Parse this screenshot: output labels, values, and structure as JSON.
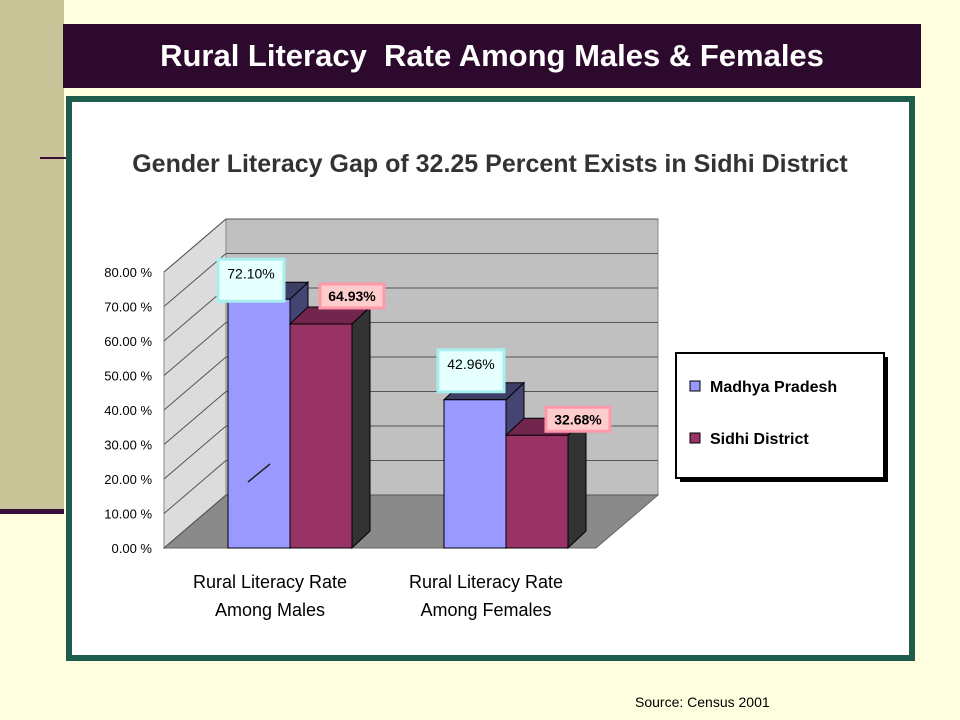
{
  "slide": {
    "title": "Rural Literacy  Rate Among Males & Females",
    "source": "Source: Census 2001"
  },
  "colors": {
    "title_bar": "#2D0A2D",
    "background": "#FFFFE0",
    "left_band": "#C9C497",
    "frame": "#1E5D4E",
    "series_mp": "#9999FF",
    "series_sidhi": "#993366",
    "plot_wall": "#C0C0C0"
  },
  "chart_data": {
    "type": "bar",
    "title": "Gender Literacy Gap of 32.25 Percent Exists in Sidhi District",
    "categories": [
      "Rural Literacy Rate Among Males",
      "Rural Literacy Rate Among Females"
    ],
    "series": [
      {
        "name": "Madhya Pradesh",
        "values": [
          72.1,
          42.96
        ],
        "labels": [
          "72.10%",
          "42.96%"
        ],
        "color": "#9999FF"
      },
      {
        "name": "Sidhi  District",
        "values": [
          64.93,
          32.68
        ],
        "labels": [
          "64.93%",
          "32.68%"
        ],
        "color": "#993366"
      }
    ],
    "y_ticks": [
      "0.00 %",
      "10.00 %",
      "20.00 %",
      "30.00 %",
      "40.00 %",
      "50.00 %",
      "60.00 %",
      "70.00 %",
      "80.00 %"
    ],
    "ylim": [
      0,
      80
    ],
    "grid": true,
    "three_d": true,
    "legend_position": "right"
  }
}
